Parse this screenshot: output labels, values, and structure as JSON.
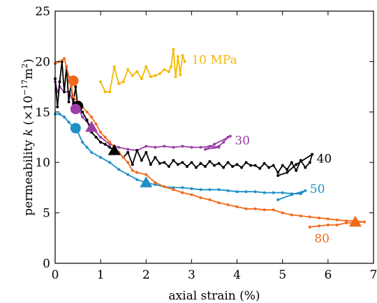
{
  "chart_data": {
    "type": "line",
    "title": "",
    "xlabel": "axial strain (%)",
    "ylabel": {
      "main": "permeability ",
      "italic": "k",
      "unit_open": " (×10",
      "unit_exp1": "−17",
      "unit_mid": "m",
      "unit_exp2": "2",
      "unit_close": ")"
    },
    "xlim": [
      0,
      7
    ],
    "ylim": [
      0,
      25
    ],
    "xticks": [
      0,
      1,
      2,
      3,
      4,
      5,
      6,
      7
    ],
    "yticks": [
      0,
      5,
      10,
      15,
      20,
      25
    ],
    "grid": false,
    "legend": "none",
    "series": [
      {
        "name": "10 MPa",
        "color": "#f5b800",
        "points": [
          [
            1.0,
            18.0
          ],
          [
            1.1,
            17.0
          ],
          [
            1.2,
            17.0
          ],
          [
            1.3,
            19.5
          ],
          [
            1.4,
            17.8
          ],
          [
            1.5,
            18.0
          ],
          [
            1.6,
            19.2
          ],
          [
            1.7,
            18.6
          ],
          [
            1.8,
            19.0
          ],
          [
            1.9,
            18.3
          ],
          [
            2.0,
            19.5
          ],
          [
            2.1,
            18.5
          ],
          [
            2.2,
            18.6
          ],
          [
            2.3,
            18.8
          ],
          [
            2.4,
            19.2
          ],
          [
            2.5,
            19.0
          ],
          [
            2.55,
            19.5
          ],
          [
            2.6,
            21.2
          ],
          [
            2.65,
            18.5
          ],
          [
            2.7,
            20.5
          ],
          [
            2.75,
            18.7
          ],
          [
            2.8,
            20.6
          ],
          [
            2.85,
            20.0
          ]
        ],
        "marker": null
      },
      {
        "name": "30",
        "color": "#9b3fa8",
        "points": [
          [
            0.0,
            18.0
          ],
          [
            0.05,
            17.0
          ],
          [
            0.1,
            17.5
          ],
          [
            0.2,
            17.0
          ],
          [
            0.3,
            17.0
          ],
          [
            0.4,
            16.0
          ],
          [
            0.5,
            15.5
          ],
          [
            0.6,
            14.5
          ],
          [
            0.8,
            13.5
          ],
          [
            1.0,
            12.5
          ],
          [
            1.2,
            11.8
          ],
          [
            1.4,
            11.5
          ],
          [
            1.6,
            11.3
          ],
          [
            1.8,
            11.2
          ],
          [
            2.0,
            11.6
          ],
          [
            2.2,
            11.5
          ],
          [
            2.4,
            11.6
          ],
          [
            2.6,
            11.5
          ],
          [
            2.8,
            11.6
          ],
          [
            3.0,
            11.5
          ],
          [
            3.2,
            11.5
          ],
          [
            3.4,
            11.6
          ],
          [
            3.5,
            11.5
          ],
          [
            3.6,
            11.6
          ],
          [
            3.7,
            12.0
          ],
          [
            3.8,
            12.5
          ],
          [
            3.85,
            12.6
          ],
          [
            3.5,
            11.8
          ],
          [
            3.3,
            11.3
          ],
          [
            3.6,
            11.5
          ]
        ],
        "marker": {
          "shape": "triangle",
          "x": 0.8,
          "y": 13.5
        }
      },
      {
        "name": "40",
        "color": "#000000",
        "points": [
          [
            0.0,
            18.3
          ],
          [
            0.05,
            15.5
          ],
          [
            0.1,
            18.0
          ],
          [
            0.15,
            20.0
          ],
          [
            0.2,
            17.0
          ],
          [
            0.25,
            19.5
          ],
          [
            0.3,
            16.0
          ],
          [
            0.35,
            17.8
          ],
          [
            0.4,
            15.8
          ],
          [
            0.45,
            17.5
          ],
          [
            0.5,
            15.5
          ],
          [
            0.6,
            15.0
          ],
          [
            0.7,
            14.2
          ],
          [
            0.8,
            13.0
          ],
          [
            0.9,
            12.5
          ],
          [
            1.0,
            12.0
          ],
          [
            1.1,
            11.8
          ],
          [
            1.2,
            11.5
          ],
          [
            1.3,
            11.2
          ],
          [
            1.4,
            11.0
          ],
          [
            1.5,
            10.5
          ],
          [
            1.6,
            11.0
          ],
          [
            1.7,
            9.8
          ],
          [
            1.8,
            11.2
          ],
          [
            1.9,
            10.2
          ],
          [
            2.0,
            11.0
          ],
          [
            2.1,
            9.8
          ],
          [
            2.2,
            10.5
          ],
          [
            2.3,
            9.9
          ],
          [
            2.4,
            10.0
          ],
          [
            2.5,
            9.6
          ],
          [
            2.6,
            10.2
          ],
          [
            2.7,
            9.8
          ],
          [
            2.8,
            10.0
          ],
          [
            2.9,
            9.6
          ],
          [
            3.0,
            10.0
          ],
          [
            3.1,
            9.5
          ],
          [
            3.2,
            9.9
          ],
          [
            3.3,
            9.6
          ],
          [
            3.4,
            10.1
          ],
          [
            3.5,
            9.7
          ],
          [
            3.6,
            9.9
          ],
          [
            3.7,
            9.5
          ],
          [
            3.8,
            10.0
          ],
          [
            3.9,
            9.6
          ],
          [
            4.0,
            9.8
          ],
          [
            4.1,
            9.5
          ],
          [
            4.2,
            10.0
          ],
          [
            4.3,
            9.7
          ],
          [
            4.4,
            9.7
          ],
          [
            4.5,
            9.4
          ],
          [
            4.6,
            9.9
          ],
          [
            4.7,
            9.5
          ],
          [
            4.8,
            9.7
          ],
          [
            4.9,
            9.0
          ],
          [
            5.0,
            9.7
          ],
          [
            5.1,
            9.3
          ],
          [
            5.2,
            10.0
          ],
          [
            5.3,
            9.2
          ],
          [
            5.4,
            10.2
          ],
          [
            5.5,
            9.5
          ],
          [
            5.6,
            10.0
          ],
          [
            5.65,
            10.8
          ],
          [
            5.3,
            9.8
          ],
          [
            5.1,
            9.0
          ],
          [
            4.9,
            8.7
          ]
        ],
        "marker": {
          "shape": "triangle",
          "x": 1.3,
          "y": 11.2
        }
      },
      {
        "name": "50",
        "color": "#1f8fc7",
        "points": [
          [
            0.0,
            14.8
          ],
          [
            0.1,
            14.8
          ],
          [
            0.2,
            14.5
          ],
          [
            0.3,
            14.0
          ],
          [
            0.4,
            13.5
          ],
          [
            0.5,
            13.0
          ],
          [
            0.6,
            12.0
          ],
          [
            0.7,
            11.5
          ],
          [
            0.8,
            11.0
          ],
          [
            1.0,
            10.5
          ],
          [
            1.2,
            10.0
          ],
          [
            1.4,
            9.3
          ],
          [
            1.6,
            8.8
          ],
          [
            1.8,
            8.3
          ],
          [
            2.0,
            8.0
          ],
          [
            2.2,
            7.8
          ],
          [
            2.4,
            7.6
          ],
          [
            2.6,
            7.5
          ],
          [
            2.8,
            7.5
          ],
          [
            3.0,
            7.4
          ],
          [
            3.2,
            7.3
          ],
          [
            3.4,
            7.3
          ],
          [
            3.6,
            7.3
          ],
          [
            3.8,
            7.2
          ],
          [
            4.0,
            7.1
          ],
          [
            4.2,
            7.1
          ],
          [
            4.4,
            7.1
          ],
          [
            4.6,
            7.0
          ],
          [
            4.8,
            7.0
          ],
          [
            5.0,
            7.0
          ],
          [
            5.2,
            6.9
          ],
          [
            5.4,
            6.9
          ],
          [
            5.5,
            7.2
          ],
          [
            5.2,
            6.8
          ],
          [
            4.9,
            6.3
          ]
        ],
        "marker": {
          "shape": "triangle",
          "x": 2.0,
          "y": 8.0
        }
      },
      {
        "name": "80",
        "color": "#f26a1b",
        "points": [
          [
            0.0,
            19.8
          ],
          [
            0.1,
            20.0
          ],
          [
            0.2,
            20.3
          ],
          [
            0.25,
            19.5
          ],
          [
            0.3,
            18.5
          ],
          [
            0.35,
            17.5
          ],
          [
            0.4,
            16.5
          ],
          [
            0.5,
            16.0
          ],
          [
            0.6,
            15.5
          ],
          [
            0.7,
            15.0
          ],
          [
            0.8,
            14.5
          ],
          [
            0.9,
            13.8
          ],
          [
            1.0,
            13.0
          ],
          [
            1.1,
            12.5
          ],
          [
            1.2,
            12.0
          ],
          [
            1.3,
            11.5
          ],
          [
            1.4,
            11.0
          ],
          [
            1.5,
            10.5
          ],
          [
            1.6,
            10.0
          ],
          [
            1.7,
            9.2
          ],
          [
            1.8,
            9.0
          ],
          [
            2.0,
            8.8
          ],
          [
            2.2,
            8.0
          ],
          [
            2.4,
            7.6
          ],
          [
            2.6,
            7.3
          ],
          [
            2.8,
            7.0
          ],
          [
            3.0,
            6.8
          ],
          [
            3.2,
            6.5
          ],
          [
            3.4,
            6.3
          ],
          [
            3.6,
            6.0
          ],
          [
            3.8,
            5.8
          ],
          [
            4.0,
            5.6
          ],
          [
            4.2,
            5.4
          ],
          [
            4.4,
            5.4
          ],
          [
            4.6,
            5.3
          ],
          [
            4.8,
            5.3
          ],
          [
            5.0,
            5.0
          ],
          [
            5.2,
            4.8
          ],
          [
            5.4,
            4.7
          ],
          [
            5.6,
            4.6
          ],
          [
            5.8,
            4.5
          ],
          [
            6.0,
            4.4
          ],
          [
            6.2,
            4.3
          ],
          [
            6.4,
            4.2
          ],
          [
            6.6,
            4.2
          ],
          [
            6.8,
            4.1
          ],
          [
            6.4,
            4.0
          ],
          [
            6.2,
            3.8
          ],
          [
            6.0,
            3.8
          ],
          [
            5.8,
            3.7
          ],
          [
            5.6,
            3.6
          ]
        ],
        "marker": {
          "shape": "triangle",
          "x": 6.6,
          "y": 4.1
        }
      }
    ],
    "circle_markers": [
      {
        "color": "#f26a1b",
        "x": 0.4,
        "y": 18.1
      },
      {
        "color": "#000000",
        "x": 0.5,
        "y": 15.6
      },
      {
        "color": "#9b3fa8",
        "x": 0.45,
        "y": 15.3
      },
      {
        "color": "#1f8fc7",
        "x": 0.45,
        "y": 13.4
      }
    ],
    "series_labels": [
      {
        "text": "10 MPa",
        "color": "#f5b800",
        "x": 3.0,
        "y": 20.2
      },
      {
        "text": "30",
        "color": "#9b3fa8",
        "x": 3.95,
        "y": 12.2
      },
      {
        "text": "40",
        "color": "#000000",
        "x": 5.75,
        "y": 10.4
      },
      {
        "text": "50",
        "color": "#1f8fc7",
        "x": 5.6,
        "y": 7.4
      },
      {
        "text": "80",
        "color": "#f26a1b",
        "x": 5.7,
        "y": 2.5
      }
    ]
  }
}
